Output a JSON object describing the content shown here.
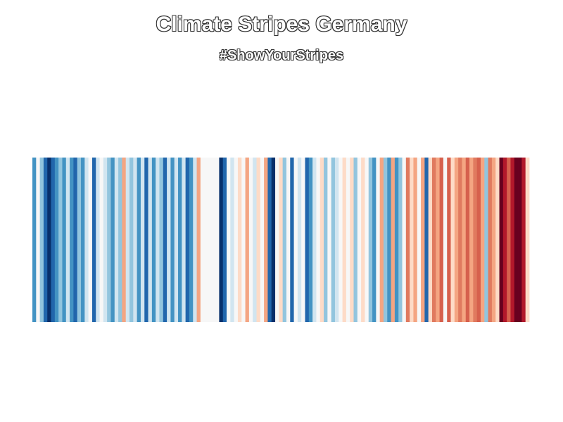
{
  "chart_data": {
    "type": "heatmap",
    "title": "Climate Stripes Germany",
    "subtitle": "#ShowYourStripes",
    "xlabel": "",
    "ylabel": "",
    "grid": false,
    "colors": [
      "#4393c3",
      "#f7f7f7",
      "#92c5de",
      "#2166ac",
      "#08306b",
      "#2166ac",
      "#4393c3",
      "#92c5de",
      "#4393c3",
      "#d1e5f0",
      "#4393c3",
      "#2166ac",
      "#92c5de",
      "#4393c3",
      "#d1e5f0",
      "#f7f7f7",
      "#2166ac",
      "#d1e5f0",
      "#f7f7f7",
      "#d1e5f0",
      "#92c5de",
      "#4393c3",
      "#d1e5f0",
      "#92c5de",
      "#f4a582",
      "#d1e5f0",
      "#92c5de",
      "#d1e5f0",
      "#4393c3",
      "#d1e5f0",
      "#2166ac",
      "#d1e5f0",
      "#4393c3",
      "#d1e5f0",
      "#92c5de",
      "#2166ac",
      "#d1e5f0",
      "#4393c3",
      "#d1e5f0",
      "#4393c3",
      "#d1e5f0",
      "#2166ac",
      "#4393c3",
      "#d1e5f0",
      "#f4a582",
      "#f7f7f7",
      "#f7f7f7",
      "#f7f7f7",
      "#f7f7f7",
      "#f7f7f7",
      "#08306b",
      "#2166ac",
      "#f7f7f7",
      "#d1e5f0",
      "#f7f7f7",
      "#fddbc7",
      "#f7f7f7",
      "#f4a582",
      "#f7f7f7",
      "#d1e5f0",
      "#fddbc7",
      "#f7f7f7",
      "#f4a582",
      "#2166ac",
      "#08306b",
      "#f7f7f7",
      "#fddbc7",
      "#92c5de",
      "#f7f7f7",
      "#2166ac",
      "#f7f7f7",
      "#d1e5f0",
      "#f7f7f7",
      "#2166ac",
      "#4393c3",
      "#d1e5f0",
      "#f7f7f7",
      "#fddbc7",
      "#92c5de",
      "#f7f7f7",
      "#92c5de",
      "#d1e5f0",
      "#f7f7f7",
      "#fddbc7",
      "#f7f7f7",
      "#fddbc7",
      "#92c5de",
      "#f7f7f7",
      "#fddbc7",
      "#f7f7f7",
      "#92c5de",
      "#4393c3",
      "#f7f7f7",
      "#f4a582",
      "#92c5de",
      "#4393c3",
      "#f4a582",
      "#4393c3",
      "#92c5de",
      "#f7f7f7",
      "#e07a5f",
      "#fddbc7",
      "#f4a582",
      "#f7f7f7",
      "#f4a582",
      "#2166ac",
      "#fddbc7",
      "#e07a5f",
      "#f4a582",
      "#d6604d",
      "#f7f7f7",
      "#d6604d",
      "#fddbc7",
      "#f4a582",
      "#e07a5f",
      "#f4a582",
      "#d6604d",
      "#f4a582",
      "#e07a5f",
      "#d6604d",
      "#f4a582",
      "#92c5de",
      "#e07a5f",
      "#f4a582",
      "#fddbc7",
      "#67001f",
      "#b2182b",
      "#d6604d",
      "#b2182b",
      "#67001f",
      "#67001f",
      "#b2182b",
      "#fddbc7"
    ]
  }
}
